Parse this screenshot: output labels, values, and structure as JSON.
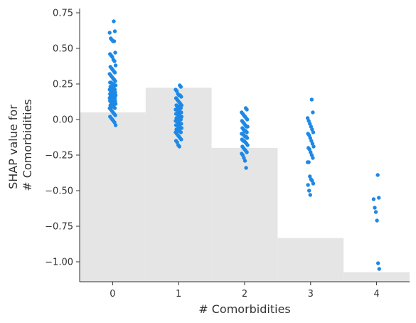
{
  "chart_data": {
    "type": "scatter",
    "title": "",
    "xlabel": "# Comorbidities",
    "ylabel_lines": [
      "SHAP value for",
      "# Comorbidities"
    ],
    "xlim": [
      -0.5,
      4.5
    ],
    "ylim": [
      -1.14,
      0.78
    ],
    "x_ticks": [
      0,
      1,
      2,
      3,
      4
    ],
    "y_ticks": [
      0.75,
      0.5,
      0.25,
      0.0,
      -0.25,
      -0.5,
      -0.75,
      -1.0
    ],
    "y_tick_labels": [
      "0.75",
      "0.50",
      "0.25",
      "0.00",
      "−0.25",
      "−0.50",
      "−0.75",
      "−1.00"
    ],
    "grid": false,
    "point_color": "#1e88e5",
    "hist_color": "#e5e5e5",
    "histogram_background": {
      "bins": [
        0,
        1,
        2,
        3,
        4
      ],
      "relative_heights": [
        0.62,
        0.71,
        0.49,
        0.16,
        0.035
      ]
    },
    "series": [
      {
        "x": 0,
        "values": [
          0.69,
          0.62,
          0.61,
          0.57,
          0.56,
          0.55,
          0.55,
          0.47,
          0.46,
          0.45,
          0.44,
          0.42,
          0.41,
          0.38,
          0.37,
          0.36,
          0.35,
          0.34,
          0.33,
          0.32,
          0.31,
          0.3,
          0.29,
          0.28,
          0.27,
          0.26,
          0.26,
          0.25,
          0.25,
          0.24,
          0.24,
          0.23,
          0.23,
          0.22,
          0.22,
          0.21,
          0.21,
          0.2,
          0.2,
          0.2,
          0.19,
          0.19,
          0.18,
          0.18,
          0.18,
          0.17,
          0.17,
          0.17,
          0.16,
          0.16,
          0.16,
          0.15,
          0.15,
          0.15,
          0.14,
          0.14,
          0.14,
          0.13,
          0.13,
          0.13,
          0.12,
          0.12,
          0.12,
          0.11,
          0.11,
          0.1,
          0.1,
          0.09,
          0.09,
          0.08,
          0.08,
          0.07,
          0.06,
          0.05,
          0.04,
          0.03,
          0.02,
          0.01,
          0.0,
          -0.01,
          -0.02,
          -0.04
        ]
      },
      {
        "x": 1,
        "values": [
          0.24,
          0.23,
          0.21,
          0.2,
          0.18,
          0.17,
          0.17,
          0.16,
          0.15,
          0.14,
          0.13,
          0.12,
          0.11,
          0.1,
          0.1,
          0.09,
          0.09,
          0.08,
          0.08,
          0.07,
          0.07,
          0.06,
          0.06,
          0.05,
          0.05,
          0.04,
          0.04,
          0.03,
          0.03,
          0.02,
          0.02,
          0.01,
          0.01,
          0.0,
          0.0,
          0.0,
          -0.01,
          -0.01,
          -0.02,
          -0.02,
          -0.03,
          -0.03,
          -0.04,
          -0.04,
          -0.05,
          -0.05,
          -0.06,
          -0.06,
          -0.07,
          -0.07,
          -0.08,
          -0.08,
          -0.09,
          -0.09,
          -0.1,
          -0.11,
          -0.12,
          -0.13,
          -0.14,
          -0.15,
          -0.16,
          -0.18,
          -0.19
        ]
      },
      {
        "x": 2,
        "values": [
          0.08,
          0.07,
          0.05,
          0.04,
          0.03,
          0.02,
          0.01,
          0.0,
          -0.01,
          -0.02,
          -0.03,
          -0.04,
          -0.05,
          -0.05,
          -0.06,
          -0.07,
          -0.08,
          -0.08,
          -0.09,
          -0.1,
          -0.1,
          -0.11,
          -0.12,
          -0.12,
          -0.13,
          -0.14,
          -0.15,
          -0.15,
          -0.16,
          -0.17,
          -0.18,
          -0.19,
          -0.2,
          -0.21,
          -0.22,
          -0.23,
          -0.24,
          -0.25,
          -0.27,
          -0.29,
          -0.34
        ]
      },
      {
        "x": 3,
        "values": [
          0.14,
          0.05,
          0.01,
          -0.01,
          -0.03,
          -0.05,
          -0.07,
          -0.09,
          -0.1,
          -0.11,
          -0.13,
          -0.15,
          -0.17,
          -0.19,
          -0.2,
          -0.21,
          -0.23,
          -0.25,
          -0.27,
          -0.3,
          -0.3,
          -0.4,
          -0.42,
          -0.43,
          -0.45,
          -0.46,
          -0.5,
          -0.53
        ]
      },
      {
        "x": 4,
        "values": [
          -0.39,
          -0.55,
          -0.56,
          -0.62,
          -0.65,
          -0.71,
          -1.01,
          -1.05
        ]
      }
    ]
  }
}
